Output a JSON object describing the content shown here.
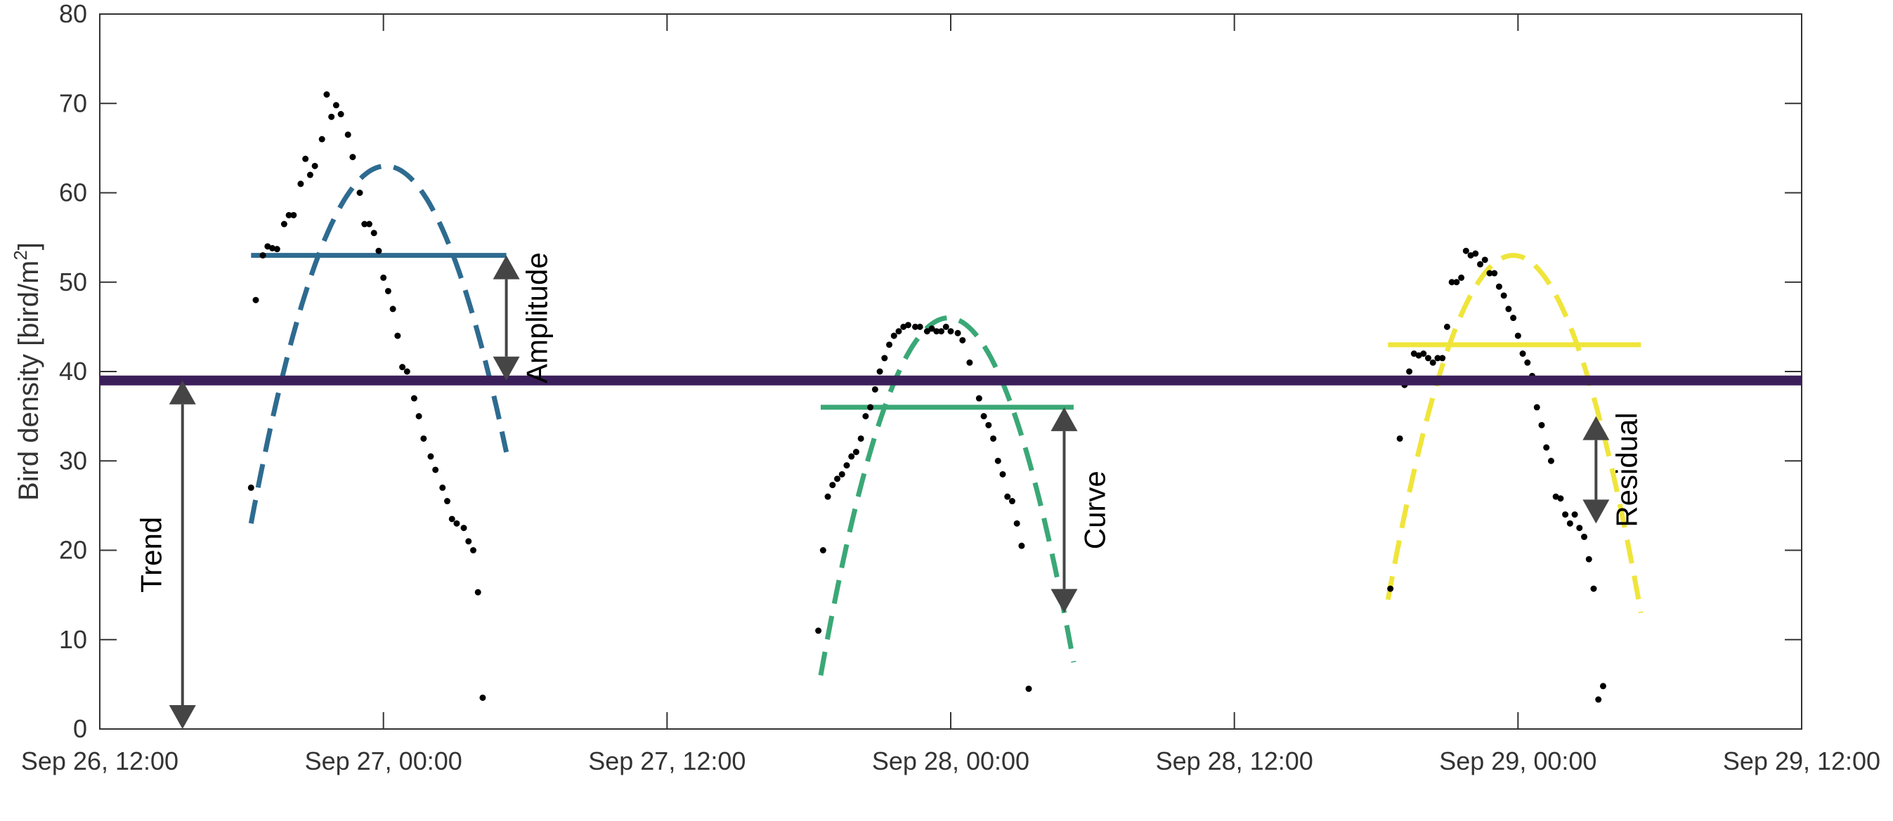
{
  "chart_data": {
    "type": "scatter",
    "title": "",
    "xlabel": "",
    "ylabel": "Bird density [bird/m",
    "ylabel_sup": "2",
    "ylabel_suffix": "]",
    "x_unit": "hours since Sep 26, 12:00",
    "xlim": [
      0,
      72
    ],
    "ylim": [
      0,
      80
    ],
    "grid": false,
    "x_ticks": [
      {
        "value": 0,
        "label": "Sep 26, 12:00"
      },
      {
        "value": 12,
        "label": "Sep 27, 00:00"
      },
      {
        "value": 24,
        "label": "Sep 27, 12:00"
      },
      {
        "value": 36,
        "label": "Sep 28, 00:00"
      },
      {
        "value": 48,
        "label": "Sep 28, 12:00"
      },
      {
        "value": 60,
        "label": "Sep 29, 00:00"
      },
      {
        "value": 72,
        "label": "Sep 29, 12:00"
      }
    ],
    "y_ticks": [
      0,
      10,
      20,
      30,
      40,
      50,
      60,
      70,
      80
    ],
    "trend": {
      "value": 39,
      "color": "#3b1f5a"
    },
    "nights": [
      {
        "color": "#2e6b90",
        "mean": 53,
        "mean_x": [
          6.4,
          17.2
        ],
        "curve": {
          "x_start": 6.4,
          "x_end": 17.2,
          "peak_x": 12.1,
          "peak_y": 63,
          "end_y": 23
        },
        "points": [
          [
            6.4,
            27
          ],
          [
            6.6,
            48
          ],
          [
            6.9,
            53
          ],
          [
            7.1,
            54
          ],
          [
            7.3,
            53.8
          ],
          [
            7.5,
            53.7
          ],
          [
            7.8,
            56.5
          ],
          [
            8.0,
            57.5
          ],
          [
            8.2,
            57.5
          ],
          [
            8.5,
            61
          ],
          [
            8.7,
            63.8
          ],
          [
            8.9,
            62
          ],
          [
            9.1,
            63
          ],
          [
            9.4,
            66
          ],
          [
            9.6,
            71
          ],
          [
            9.8,
            68.5
          ],
          [
            10.0,
            69.8
          ],
          [
            10.2,
            68.8
          ],
          [
            10.5,
            66.5
          ],
          [
            10.7,
            64
          ],
          [
            11.0,
            60
          ],
          [
            11.2,
            56.5
          ],
          [
            11.4,
            56.5
          ],
          [
            11.6,
            55.5
          ],
          [
            11.8,
            53.5
          ],
          [
            12.0,
            50.5
          ],
          [
            12.2,
            49
          ],
          [
            12.4,
            47
          ],
          [
            12.6,
            44
          ],
          [
            12.8,
            40.5
          ],
          [
            13.0,
            40
          ],
          [
            13.3,
            37
          ],
          [
            13.5,
            35
          ],
          [
            13.7,
            32.5
          ],
          [
            14.0,
            30.5
          ],
          [
            14.2,
            29
          ],
          [
            14.5,
            27
          ],
          [
            14.7,
            25.5
          ],
          [
            14.9,
            23.5
          ],
          [
            15.1,
            23
          ],
          [
            15.4,
            22.5
          ],
          [
            15.6,
            21
          ],
          [
            15.8,
            20
          ],
          [
            16.0,
            15.3
          ],
          [
            16.2,
            3.5
          ]
        ]
      },
      {
        "color": "#3aa876",
        "mean": 36,
        "mean_x": [
          30.5,
          41.2
        ],
        "curve": {
          "x_start": 30.5,
          "x_end": 41.2,
          "peak_x": 35.9,
          "peak_y": 46,
          "end_y": 6
        },
        "points": [
          [
            30.4,
            11
          ],
          [
            30.6,
            20
          ],
          [
            30.8,
            26
          ],
          [
            31.0,
            27.3
          ],
          [
            31.2,
            28
          ],
          [
            31.4,
            28.5
          ],
          [
            31.6,
            29.5
          ],
          [
            31.8,
            30.5
          ],
          [
            32.0,
            31
          ],
          [
            32.2,
            32.5
          ],
          [
            32.4,
            35
          ],
          [
            32.6,
            36
          ],
          [
            32.8,
            38
          ],
          [
            33.0,
            40
          ],
          [
            33.2,
            41.5
          ],
          [
            33.4,
            43
          ],
          [
            33.6,
            44
          ],
          [
            33.8,
            44.5
          ],
          [
            34.0,
            45
          ],
          [
            34.2,
            45.2
          ],
          [
            34.5,
            45
          ],
          [
            34.7,
            45
          ],
          [
            35.0,
            44.5
          ],
          [
            35.2,
            44.8
          ],
          [
            35.4,
            44.5
          ],
          [
            35.6,
            44.5
          ],
          [
            35.8,
            45
          ],
          [
            36.0,
            44.5
          ],
          [
            36.3,
            44.3
          ],
          [
            36.5,
            43.5
          ],
          [
            36.8,
            41
          ],
          [
            37.0,
            39
          ],
          [
            37.2,
            37
          ],
          [
            37.4,
            35
          ],
          [
            37.6,
            34
          ],
          [
            37.8,
            32.5
          ],
          [
            38.0,
            30
          ],
          [
            38.2,
            28.5
          ],
          [
            38.4,
            26
          ],
          [
            38.6,
            25.5
          ],
          [
            38.8,
            23
          ],
          [
            39.0,
            20.5
          ],
          [
            39.3,
            4.5
          ]
        ]
      },
      {
        "color": "#efe53a",
        "mean": 43,
        "mean_x": [
          54.5,
          65.2
        ],
        "curve": {
          "x_start": 54.5,
          "x_end": 65.2,
          "peak_x": 59.8,
          "peak_y": 53,
          "end_y": 13
        },
        "points": [
          [
            54.6,
            15.7
          ],
          [
            55.0,
            32.5
          ],
          [
            55.2,
            38.5
          ],
          [
            55.4,
            40
          ],
          [
            55.6,
            42
          ],
          [
            55.8,
            41.8
          ],
          [
            56.0,
            42
          ],
          [
            56.2,
            41.5
          ],
          [
            56.4,
            41
          ],
          [
            56.6,
            41.5
          ],
          [
            56.8,
            41.5
          ],
          [
            57.0,
            45
          ],
          [
            57.2,
            50
          ],
          [
            57.4,
            50
          ],
          [
            57.6,
            50.5
          ],
          [
            57.8,
            53.5
          ],
          [
            58.0,
            53
          ],
          [
            58.2,
            53.2
          ],
          [
            58.4,
            52
          ],
          [
            58.6,
            52.5
          ],
          [
            58.8,
            51
          ],
          [
            59.0,
            51
          ],
          [
            59.2,
            49.5
          ],
          [
            59.4,
            48.5
          ],
          [
            59.6,
            47
          ],
          [
            59.8,
            46
          ],
          [
            60.0,
            44
          ],
          [
            60.2,
            42
          ],
          [
            60.4,
            41
          ],
          [
            60.6,
            39.5
          ],
          [
            60.8,
            36
          ],
          [
            61.0,
            34
          ],
          [
            61.2,
            31.5
          ],
          [
            61.4,
            30
          ],
          [
            61.6,
            26
          ],
          [
            61.8,
            25.8
          ],
          [
            62.0,
            24
          ],
          [
            62.2,
            23
          ],
          [
            62.4,
            24
          ],
          [
            62.6,
            22.5
          ],
          [
            62.8,
            21.5
          ],
          [
            63.0,
            19
          ],
          [
            63.2,
            15.7
          ],
          [
            63.4,
            3.3
          ],
          [
            63.6,
            4.8
          ]
        ]
      }
    ],
    "annotations": [
      {
        "label": "Trend",
        "x": 3.5,
        "y_from": 0,
        "y_to": 39
      },
      {
        "label": "Amplitude",
        "x": 17.2,
        "y_from": 39,
        "y_to": 53
      },
      {
        "label": "Curve",
        "x": 40.8,
        "y_from": 13,
        "y_to": 36
      },
      {
        "label": "Residual",
        "x": 63.3,
        "y_from": 23,
        "y_to": 35
      }
    ]
  }
}
